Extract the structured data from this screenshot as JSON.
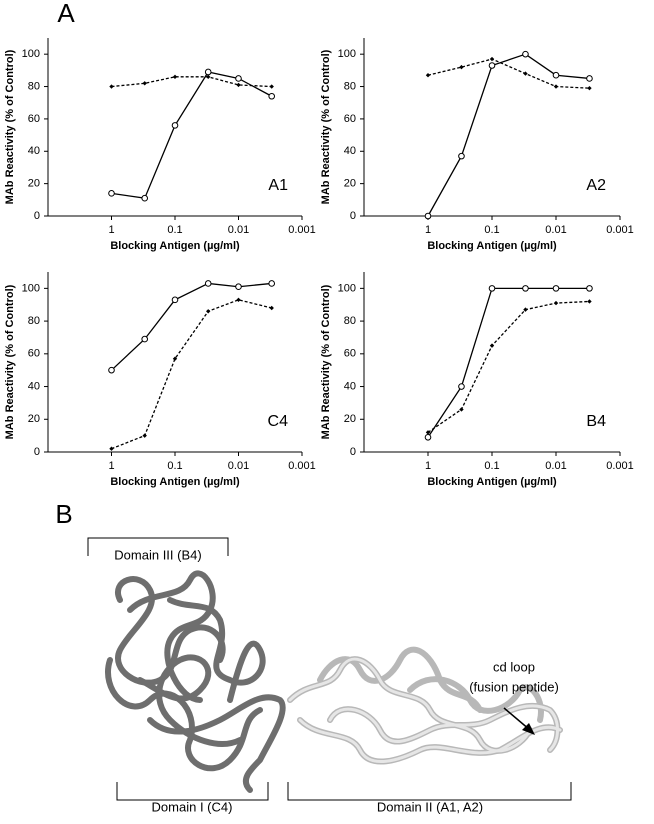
{
  "panel_labels": [
    "A",
    "B"
  ],
  "chart_data": [
    {
      "type": "line",
      "annotation": "A1",
      "x_label": "Blocking Antigen (µg/ml)",
      "y_label": "MAb Reactivity (% of Control)",
      "x_log": true,
      "xlim": [
        10,
        0.001
      ],
      "xticks": [
        1,
        0.1,
        0.01,
        0.001
      ],
      "ylim": [
        0,
        110
      ],
      "yticks": [
        0,
        20,
        40,
        60,
        80,
        100
      ],
      "x": [
        1,
        0.3,
        0.1,
        0.03,
        0.01,
        0.003
      ],
      "series": [
        {
          "color": "#000000",
          "line_style": "solid",
          "marker": "open-circle",
          "values": [
            14,
            11,
            56,
            89,
            85,
            74
          ]
        },
        {
          "color": "#000000",
          "line_style": "dashed",
          "marker": "diamond",
          "values": [
            80,
            82,
            86,
            86,
            81,
            80
          ]
        }
      ]
    },
    {
      "type": "line",
      "annotation": "A2",
      "x_label": "Blocking Antigen (µg/ml)",
      "y_label": "MAb Reactivity (% of Control)",
      "x_log": true,
      "xlim": [
        10,
        0.001
      ],
      "xticks": [
        1,
        0.1,
        0.01,
        0.001
      ],
      "ylim": [
        0,
        110
      ],
      "yticks": [
        0,
        20,
        40,
        60,
        80,
        100
      ],
      "x": [
        1,
        0.3,
        0.1,
        0.03,
        0.01,
        0.003
      ],
      "series": [
        {
          "color": "#000000",
          "line_style": "solid",
          "marker": "open-circle",
          "values": [
            0,
            37,
            93,
            100,
            87,
            85
          ]
        },
        {
          "color": "#000000",
          "line_style": "dashed",
          "marker": "diamond",
          "values": [
            87,
            92,
            97,
            88,
            80,
            79
          ]
        }
      ]
    },
    {
      "type": "line",
      "annotation": "C4",
      "x_label": "Blocking Antigen (µg/ml)",
      "y_label": "MAb Reactivity (% of Control)",
      "x_log": true,
      "xlim": [
        10,
        0.001
      ],
      "xticks": [
        1,
        0.1,
        0.01,
        0.001
      ],
      "ylim": [
        0,
        110
      ],
      "yticks": [
        0,
        20,
        40,
        60,
        80,
        100
      ],
      "x": [
        1,
        0.3,
        0.1,
        0.03,
        0.01,
        0.003
      ],
      "series": [
        {
          "color": "#000000",
          "line_style": "solid",
          "marker": "open-circle",
          "values": [
            50,
            69,
            93,
            103,
            101,
            103
          ]
        },
        {
          "color": "#000000",
          "line_style": "dashed",
          "marker": "diamond",
          "values": [
            2,
            10,
            57,
            86,
            93,
            88
          ]
        }
      ]
    },
    {
      "type": "line",
      "annotation": "B4",
      "x_label": "Blocking Antigen (µg/ml)",
      "y_label": "MAb Reactivity (% of Control)",
      "x_log": true,
      "xlim": [
        10,
        0.001
      ],
      "xticks": [
        1,
        0.1,
        0.01,
        0.001
      ],
      "ylim": [
        0,
        110
      ],
      "yticks": [
        0,
        20,
        40,
        60,
        80,
        100
      ],
      "x": [
        1,
        0.3,
        0.1,
        0.03,
        0.01,
        0.003
      ],
      "series": [
        {
          "color": "#000000",
          "line_style": "solid",
          "marker": "open-circle",
          "values": [
            9,
            40,
            100,
            100,
            100,
            100
          ]
        },
        {
          "color": "#000000",
          "line_style": "dashed",
          "marker": "diamond",
          "values": [
            12,
            26,
            65,
            87,
            91,
            92
          ]
        }
      ]
    }
  ],
  "structure": {
    "domain_labels": [
      "Domain III (B4)",
      "Domain I (C4)",
      "Domain II (A1, A2)"
    ],
    "annotation": [
      "cd loop",
      "(fusion peptide)"
    ]
  }
}
